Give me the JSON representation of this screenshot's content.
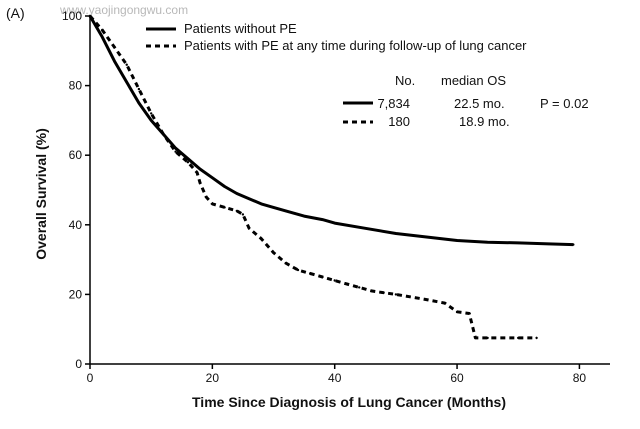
{
  "panel_label": "(A)",
  "watermark": "www.yaojingongwu.com",
  "legend": {
    "items": [
      {
        "label": "Patients without PE",
        "style": "solid"
      },
      {
        "label": "Patients with PE at any time during follow-up of lung cancer",
        "style": "dashed"
      }
    ]
  },
  "stats_table": {
    "header_no": "No.",
    "header_median": "median OS",
    "rows": [
      {
        "style": "solid",
        "no": "7,834",
        "median": "22.5 mo."
      },
      {
        "style": "dashed",
        "no": "180",
        "median": "18.9 mo."
      }
    ],
    "p_value": "P = 0.02"
  },
  "colors": {
    "line": "#000000",
    "watermark": "#b8b8b8"
  },
  "chart_data": {
    "type": "line",
    "title": "",
    "xlabel": "Time Since Diagnosis of Lung Cancer (Months)",
    "ylabel": "Overall Survival (%)",
    "xlim": [
      0,
      85
    ],
    "ylim": [
      0,
      100
    ],
    "xticks": [
      0,
      20,
      40,
      60,
      80
    ],
    "yticks": [
      0,
      20,
      40,
      60,
      80,
      100
    ],
    "grid": false,
    "legend_position": "top",
    "series": [
      {
        "name": "Patients without PE",
        "style": "solid",
        "x": [
          0,
          2,
          4,
          6,
          8,
          10,
          12,
          14,
          16,
          18,
          20,
          22,
          24,
          26,
          28,
          30,
          32,
          35,
          38,
          40,
          45,
          50,
          55,
          60,
          65,
          70,
          75,
          79
        ],
        "y": [
          100,
          94,
          87,
          81,
          75,
          70,
          66,
          62,
          59,
          56,
          53.5,
          51,
          49,
          47.5,
          46,
          45,
          44,
          42.5,
          41.5,
          40.5,
          39,
          37.5,
          36.5,
          35.5,
          35,
          34.8,
          34.5,
          34.3
        ]
      },
      {
        "name": "Patients with PE at any time during follow-up of lung cancer",
        "style": "dashed",
        "x": [
          0,
          2,
          4,
          6,
          8,
          10,
          12,
          14,
          16,
          17.5,
          18,
          19,
          20,
          22,
          24,
          25,
          26,
          28,
          30,
          32,
          34,
          36,
          38,
          40,
          42,
          44,
          46,
          48,
          50,
          55,
          58,
          60,
          62,
          63,
          65,
          70,
          73
        ],
        "y": [
          100,
          96,
          91,
          86,
          79,
          72,
          66,
          61,
          58,
          55,
          52,
          48,
          46,
          45,
          44,
          43,
          39,
          36,
          32,
          29,
          27,
          26,
          25,
          24,
          23,
          22,
          21,
          20.5,
          20,
          18.5,
          17.5,
          15,
          14.5,
          7.5,
          7.5,
          7.5,
          7.5
        ]
      }
    ]
  }
}
